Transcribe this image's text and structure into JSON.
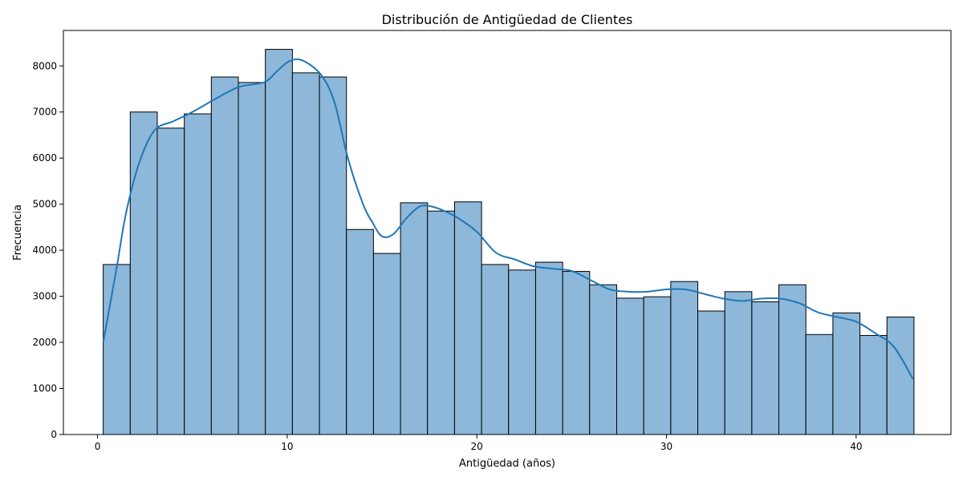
{
  "chart_data": {
    "type": "bar",
    "title": "Distribución de Antigüedad de Clientes",
    "xlabel": "Antigüedad (años)",
    "ylabel": "Frecuencia",
    "xlim": [
      -1.8,
      45.0
    ],
    "ylim": [
      0,
      8770
    ],
    "xticks": [
      0,
      10,
      20,
      30,
      40
    ],
    "yticks": [
      0,
      1000,
      2000,
      3000,
      4000,
      5000,
      6000,
      7000,
      8000
    ],
    "grid": false,
    "bins": {
      "start": 0.3,
      "width": 1.425,
      "counts": [
        3690,
        7000,
        6650,
        6960,
        7760,
        7640,
        8360,
        7850,
        7760,
        4450,
        3930,
        5030,
        4850,
        5050,
        3690,
        3570,
        3740,
        3540,
        3250,
        2960,
        2990,
        3320,
        2680,
        3100,
        2880,
        3250,
        2170,
        2640,
        2150,
        2550
      ]
    },
    "kde": {
      "x": [
        0.3,
        1.0,
        1.5,
        2.2,
        3.0,
        4.0,
        5.0,
        6.5,
        7.5,
        8.8,
        9.5,
        10.1,
        10.8,
        11.8,
        12.5,
        13.2,
        14.0,
        14.5,
        15.0,
        15.6,
        16.3,
        17.0,
        17.6,
        18.3,
        19.0,
        20.0,
        21.0,
        22.0,
        23.0,
        24.0,
        25.0,
        26.0,
        27.0,
        28.0,
        29.0,
        30.0,
        31.0,
        32.0,
        33.0,
        34.0,
        35.0,
        36.0,
        37.0,
        38.0,
        39.0,
        40.0,
        41.0,
        42.0,
        43.0
      ],
      "y": [
        2000,
        3600,
        4800,
        5900,
        6600,
        6800,
        7000,
        7350,
        7550,
        7650,
        7900,
        8100,
        8120,
        7800,
        7200,
        6000,
        5000,
        4600,
        4300,
        4350,
        4700,
        4950,
        4950,
        4850,
        4700,
        4400,
        3950,
        3800,
        3650,
        3600,
        3550,
        3350,
        3150,
        3100,
        3100,
        3150,
        3150,
        3050,
        2950,
        2900,
        2950,
        2950,
        2850,
        2650,
        2550,
        2450,
        2200,
        1900,
        1200
      ]
    },
    "colors": {
      "bar_fill": "#8db8da",
      "bar_edge": "#000000",
      "kde_line": "#1f77b4"
    }
  }
}
